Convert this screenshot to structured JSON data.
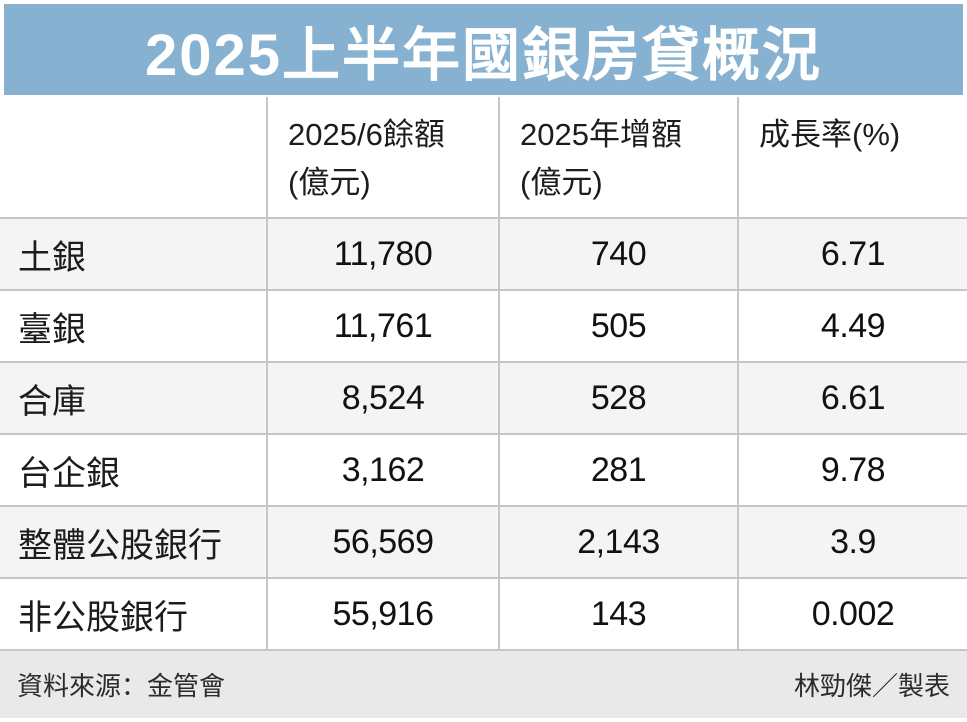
{
  "title": "2025上半年國銀房貸概況",
  "colors": {
    "title_bg": "#86b1d0",
    "title_text": "#ffffff",
    "row_alt_bg": "#f4f4f4",
    "border": "#c6c6c6",
    "footer_bg": "#e9e9e9",
    "text": "#1a1a1a"
  },
  "table": {
    "header": [
      {
        "line1": "",
        "line2": ""
      },
      {
        "line1": "2025/6餘額",
        "line2": "(億元)"
      },
      {
        "line1": "2025年增額",
        "line2": "(億元)"
      },
      {
        "line1": "成長率(%)",
        "line2": ""
      }
    ],
    "rows": [
      {
        "name": "土銀",
        "balance": "11,780",
        "increase": "740",
        "growth": "6.71"
      },
      {
        "name": "臺銀",
        "balance": "11,761",
        "increase": "505",
        "growth": "4.49"
      },
      {
        "name": "合庫",
        "balance": "8,524",
        "increase": "528",
        "growth": "6.61"
      },
      {
        "name": "台企銀",
        "balance": "3,162",
        "increase": "281",
        "growth": "9.78"
      },
      {
        "name": "整體公股銀行",
        "balance": "56,569",
        "increase": "2,143",
        "growth": "3.9"
      },
      {
        "name": "非公股銀行",
        "balance": "55,916",
        "increase": "143",
        "growth": "0.002"
      }
    ]
  },
  "footer": {
    "source": "資料來源：金管會",
    "credit": "林勁傑／製表"
  },
  "chart_data": {
    "type": "table",
    "title": "2025上半年國銀房貸概況",
    "columns": [
      "",
      "2025/6餘額(億元)",
      "2025年增額(億元)",
      "成長率(%)"
    ],
    "rows": [
      [
        "土銀",
        11780,
        740,
        6.71
      ],
      [
        "臺銀",
        11761,
        505,
        4.49
      ],
      [
        "合庫",
        8524,
        528,
        6.61
      ],
      [
        "台企銀",
        3162,
        281,
        9.78
      ],
      [
        "整體公股銀行",
        56569,
        2143,
        3.9
      ],
      [
        "非公股銀行",
        55916,
        143,
        0.002
      ]
    ],
    "source": "金管會",
    "credit": "林勁傑／製表"
  }
}
